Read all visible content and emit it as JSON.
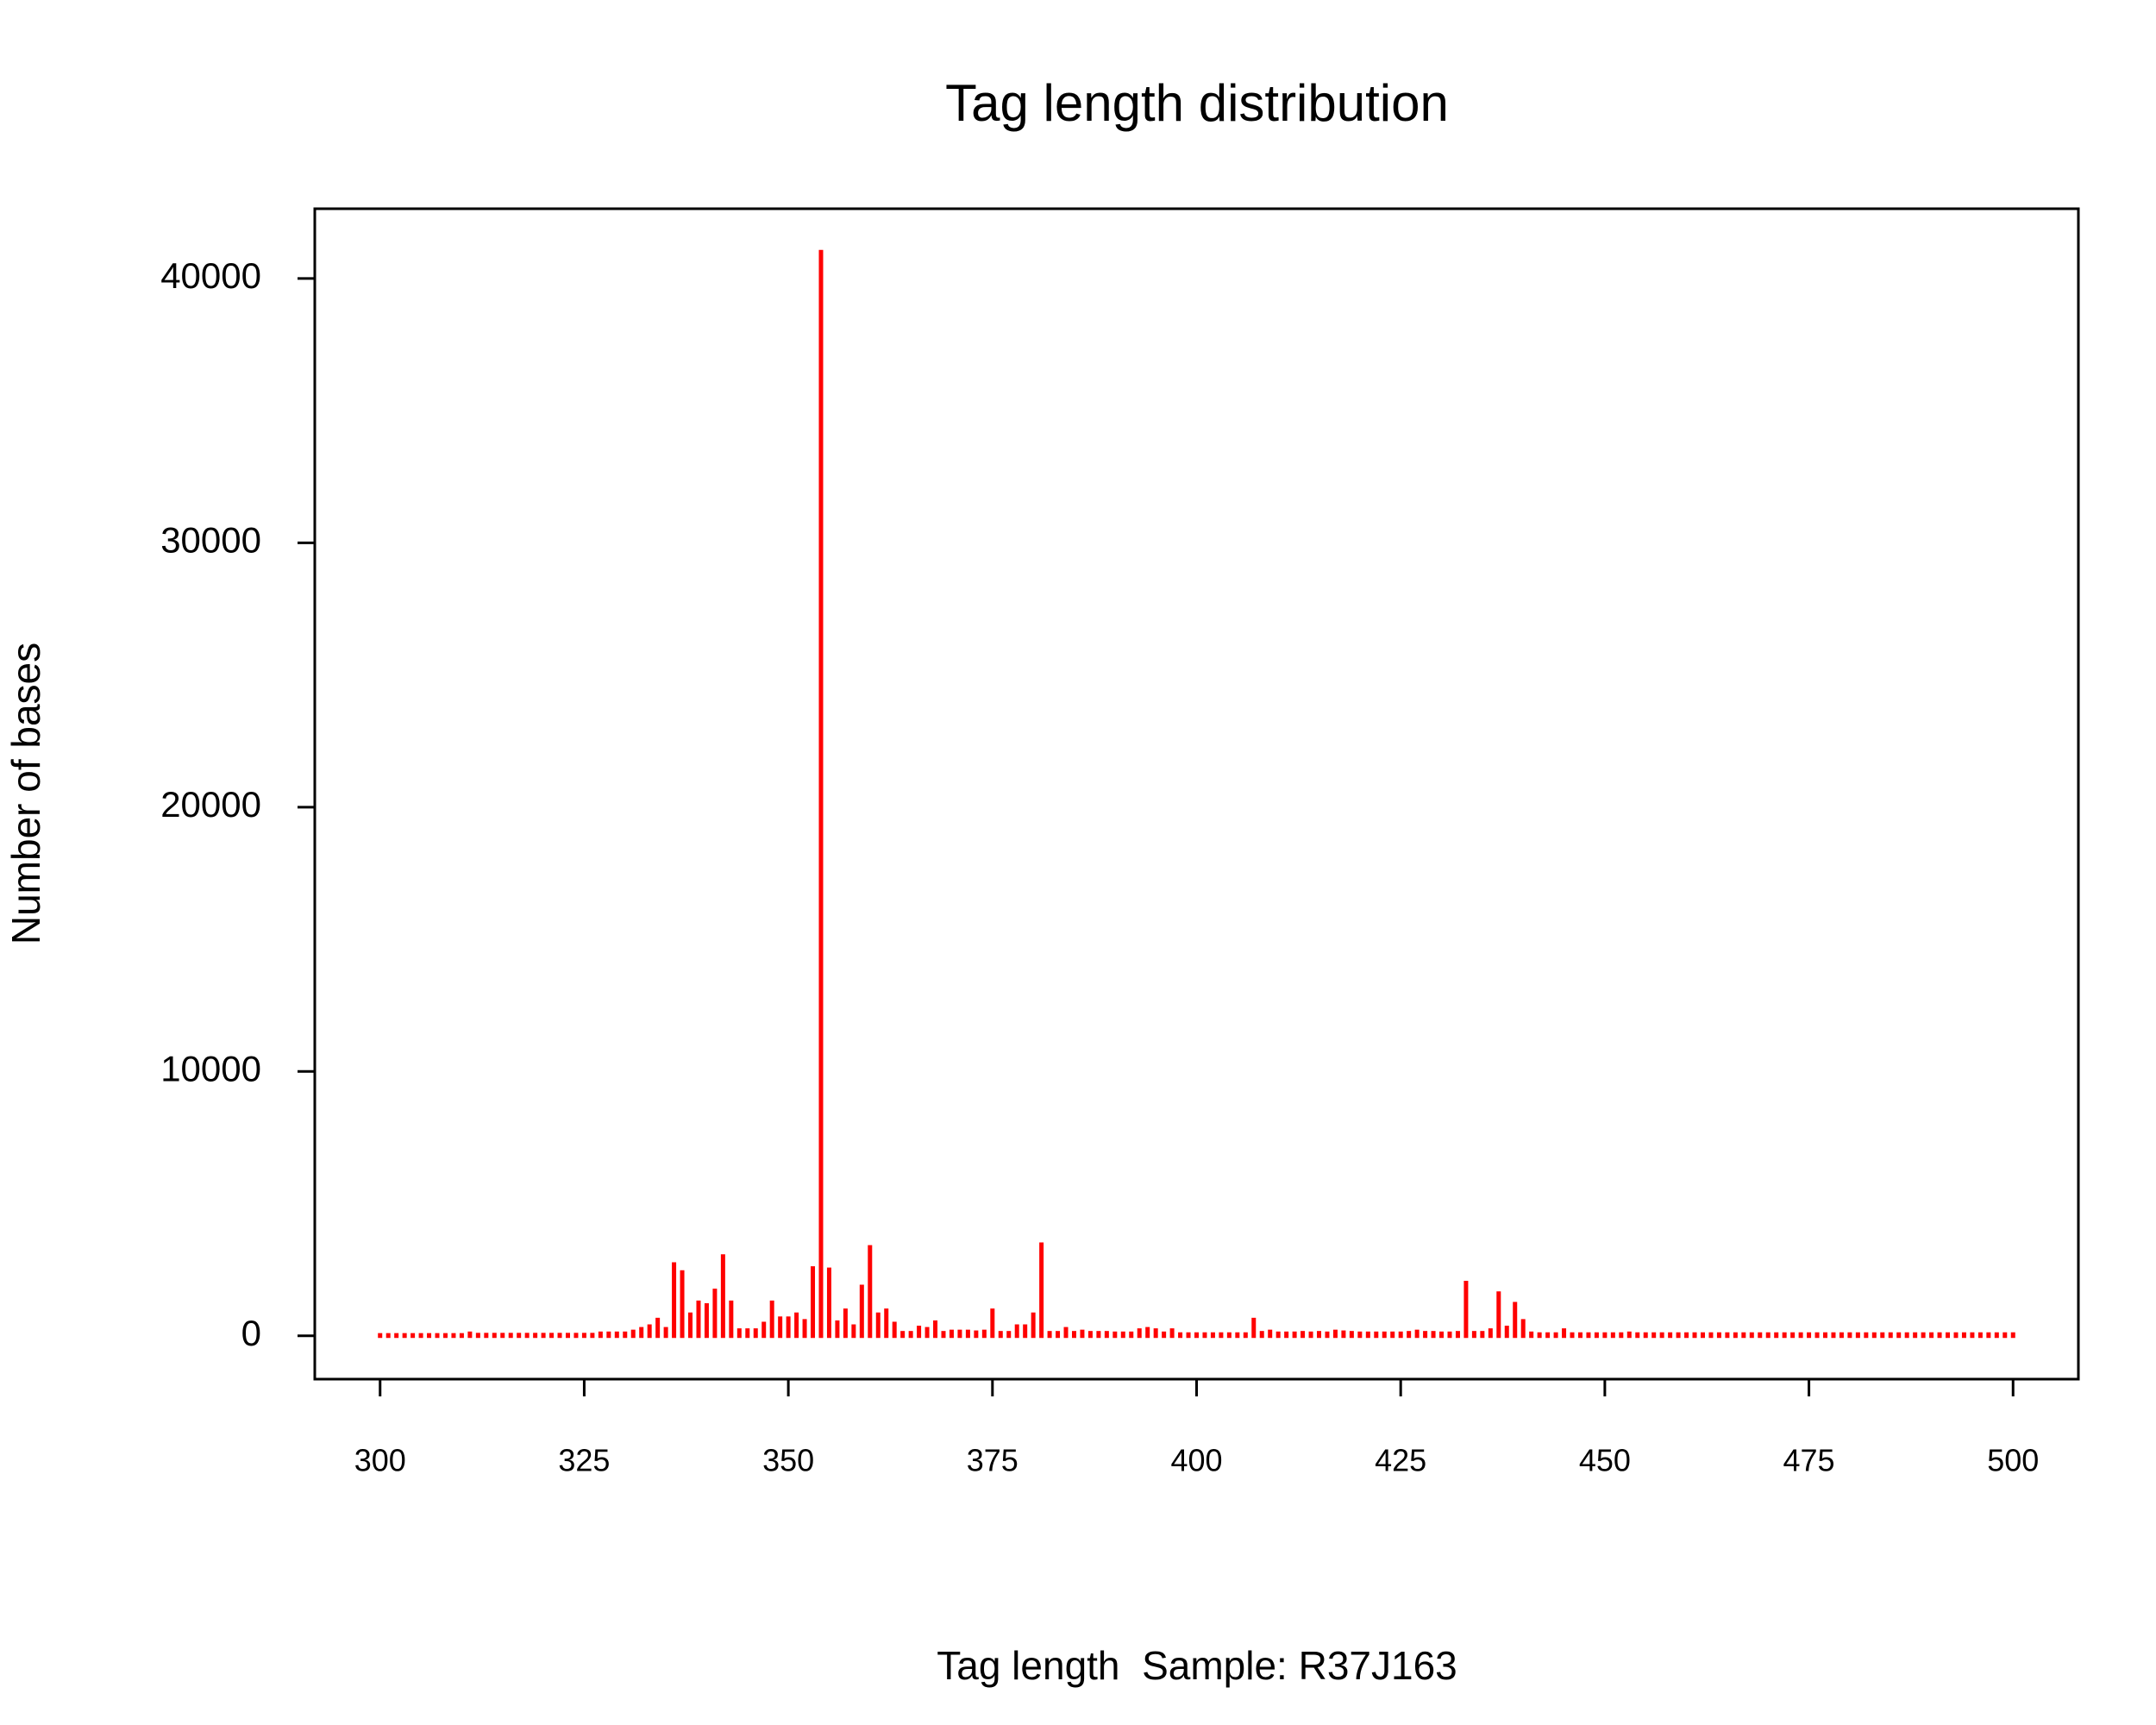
{
  "chart_data": {
    "type": "bar",
    "title": "Tag length distribution",
    "x_label": "Tag length  Sample: R37J163",
    "y_label": "Number of bases",
    "color": "#ff0000",
    "x": [
      300,
      301,
      302,
      303,
      304,
      305,
      306,
      307,
      308,
      309,
      310,
      311,
      312,
      313,
      314,
      315,
      316,
      317,
      318,
      319,
      320,
      321,
      322,
      323,
      324,
      325,
      326,
      327,
      328,
      329,
      330,
      331,
      332,
      333,
      334,
      335,
      336,
      337,
      338,
      339,
      340,
      341,
      342,
      343,
      344,
      345,
      346,
      347,
      348,
      349,
      350,
      351,
      352,
      353,
      354,
      355,
      356,
      357,
      358,
      359,
      360,
      361,
      362,
      363,
      364,
      365,
      366,
      367,
      368,
      369,
      370,
      371,
      372,
      373,
      374,
      375,
      376,
      377,
      378,
      379,
      380,
      381,
      382,
      383,
      384,
      385,
      386,
      387,
      388,
      389,
      390,
      391,
      392,
      393,
      394,
      395,
      396,
      397,
      398,
      399,
      400,
      401,
      402,
      403,
      404,
      405,
      406,
      407,
      408,
      409,
      410,
      411,
      412,
      413,
      414,
      415,
      416,
      417,
      418,
      419,
      420,
      421,
      422,
      423,
      424,
      425,
      426,
      427,
      428,
      429,
      430,
      431,
      432,
      433,
      434,
      435,
      436,
      437,
      438,
      439,
      440,
      441,
      442,
      443,
      444,
      445,
      446,
      447,
      448,
      449,
      450,
      451,
      452,
      453,
      454,
      455,
      456,
      457,
      458,
      459,
      460,
      461,
      462,
      463,
      464,
      465,
      466,
      467,
      468,
      469,
      470,
      471,
      472,
      473,
      474,
      475,
      476,
      477,
      478,
      479,
      480,
      481,
      482,
      483,
      484,
      485,
      486,
      487,
      488,
      489,
      490,
      491,
      492,
      493,
      494,
      495,
      496,
      497,
      498,
      499,
      500
    ],
    "values": [
      20,
      20,
      20,
      20,
      20,
      20,
      20,
      20,
      20,
      20,
      20,
      80,
      30,
      30,
      30,
      30,
      30,
      30,
      30,
      30,
      30,
      30,
      30,
      30,
      30,
      30,
      30,
      80,
      80,
      80,
      80,
      150,
      250,
      350,
      600,
      250,
      2700,
      2400,
      800,
      1250,
      1150,
      1700,
      3000,
      1250,
      200,
      200,
      200,
      450,
      1250,
      650,
      650,
      800,
      550,
      2550,
      41000,
      2500,
      500,
      950,
      350,
      1850,
      3350,
      800,
      950,
      450,
      100,
      100,
      300,
      250,
      500,
      100,
      150,
      150,
      150,
      120,
      150,
      950,
      100,
      100,
      350,
      350,
      800,
      3450,
      100,
      100,
      250,
      100,
      150,
      100,
      100,
      100,
      80,
      80,
      80,
      200,
      250,
      200,
      80,
      200,
      50,
      50,
      50,
      50,
      50,
      50,
      50,
      50,
      50,
      600,
      100,
      150,
      80,
      80,
      80,
      100,
      80,
      100,
      80,
      150,
      120,
      100,
      80,
      80,
      80,
      80,
      80,
      80,
      100,
      150,
      100,
      100,
      80,
      80,
      100,
      2000,
      100,
      100,
      200,
      1600,
      300,
      1200,
      550,
      80,
      50,
      50,
      50,
      200,
      50,
      50,
      50,
      50,
      50,
      50,
      50,
      80,
      50,
      50,
      50,
      50,
      50,
      50,
      50,
      50,
      50,
      50,
      50,
      50,
      50,
      50,
      50,
      50,
      50,
      50,
      50,
      50,
      50,
      50,
      50,
      50,
      50,
      50,
      50,
      50,
      50,
      50,
      50,
      50,
      50,
      50,
      50,
      50,
      50,
      50,
      50,
      50,
      50,
      50,
      50,
      50,
      50,
      50,
      50
    ],
    "xlim": [
      292,
      508
    ],
    "ylim": [
      -1640,
      42640
    ],
    "xticks": [
      300,
      325,
      350,
      375,
      400,
      425,
      450,
      475,
      500
    ],
    "yticks": [
      0,
      10000,
      20000,
      30000,
      40000
    ]
  }
}
